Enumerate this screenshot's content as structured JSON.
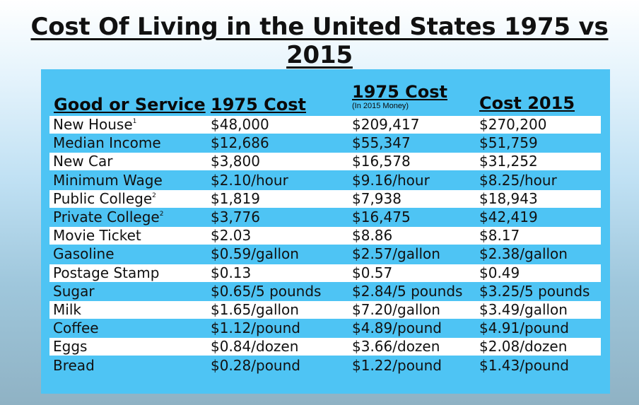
{
  "title": "Cost Of Living in the United States 1975 vs 2015",
  "headers": {
    "good": "Good or Service",
    "cost1975": "1975 Cost",
    "cost1975_adjusted": "1975 Cost",
    "cost1975_adjusted_note": "(In 2015 Money)",
    "cost2015": "Cost 2015"
  },
  "rows": [
    {
      "good": "New House",
      "footnote": "1",
      "cost1975": "$48,000",
      "adjusted": "$209,417",
      "cost2015": "$270,200"
    },
    {
      "good": "Median Income",
      "footnote": "",
      "cost1975": "$12,686",
      "adjusted": "$55,347",
      "cost2015": "$51,759"
    },
    {
      "good": "New Car",
      "footnote": "",
      "cost1975": "$3,800",
      "adjusted": "$16,578",
      "cost2015": "$31,252"
    },
    {
      "good": "Minimum Wage",
      "footnote": "",
      "cost1975": "$2.10/hour",
      "adjusted": "$9.16/hour",
      "cost2015": "$8.25/hour"
    },
    {
      "good": "Public College",
      "footnote": "2",
      "cost1975": "$1,819",
      "adjusted": "$7,938",
      "cost2015": "$18,943"
    },
    {
      "good": "Private College",
      "footnote": "2",
      "cost1975": "$3,776",
      "adjusted": "$16,475",
      "cost2015": "$42,419"
    },
    {
      "good": "Movie Ticket",
      "footnote": "",
      "cost1975": "$2.03",
      "adjusted": "$8.86",
      "cost2015": "$8.17"
    },
    {
      "good": "Gasoline",
      "footnote": "",
      "cost1975": "$0.59/gallon",
      "adjusted": "$2.57/gallon",
      "cost2015": "$2.38/gallon"
    },
    {
      "good": "Postage Stamp",
      "footnote": "",
      "cost1975": "$0.13",
      "adjusted": "$0.57",
      "cost2015": "$0.49"
    },
    {
      "good": "Sugar",
      "footnote": "",
      "cost1975": "$0.65/5 pounds",
      "adjusted": "$2.84/5 pounds",
      "cost2015": "$3.25/5 pounds"
    },
    {
      "good": "Milk",
      "footnote": "",
      "cost1975": "$1.65/gallon",
      "adjusted": "$7.20/gallon",
      "cost2015": "$3.49/gallon"
    },
    {
      "good": "Coffee",
      "footnote": "",
      "cost1975": "$1.12/pound",
      "adjusted": "$4.89/pound",
      "cost2015": "$4.91/pound"
    },
    {
      "good": "Eggs",
      "footnote": "",
      "cost1975": "$0.84/dozen",
      "adjusted": "$3.66/dozen",
      "cost2015": "$2.08/dozen"
    },
    {
      "good": "Bread",
      "footnote": "",
      "cost1975": "$0.28/pound",
      "adjusted": "$1.22/pound",
      "cost2015": "$1.43/pound"
    }
  ]
}
